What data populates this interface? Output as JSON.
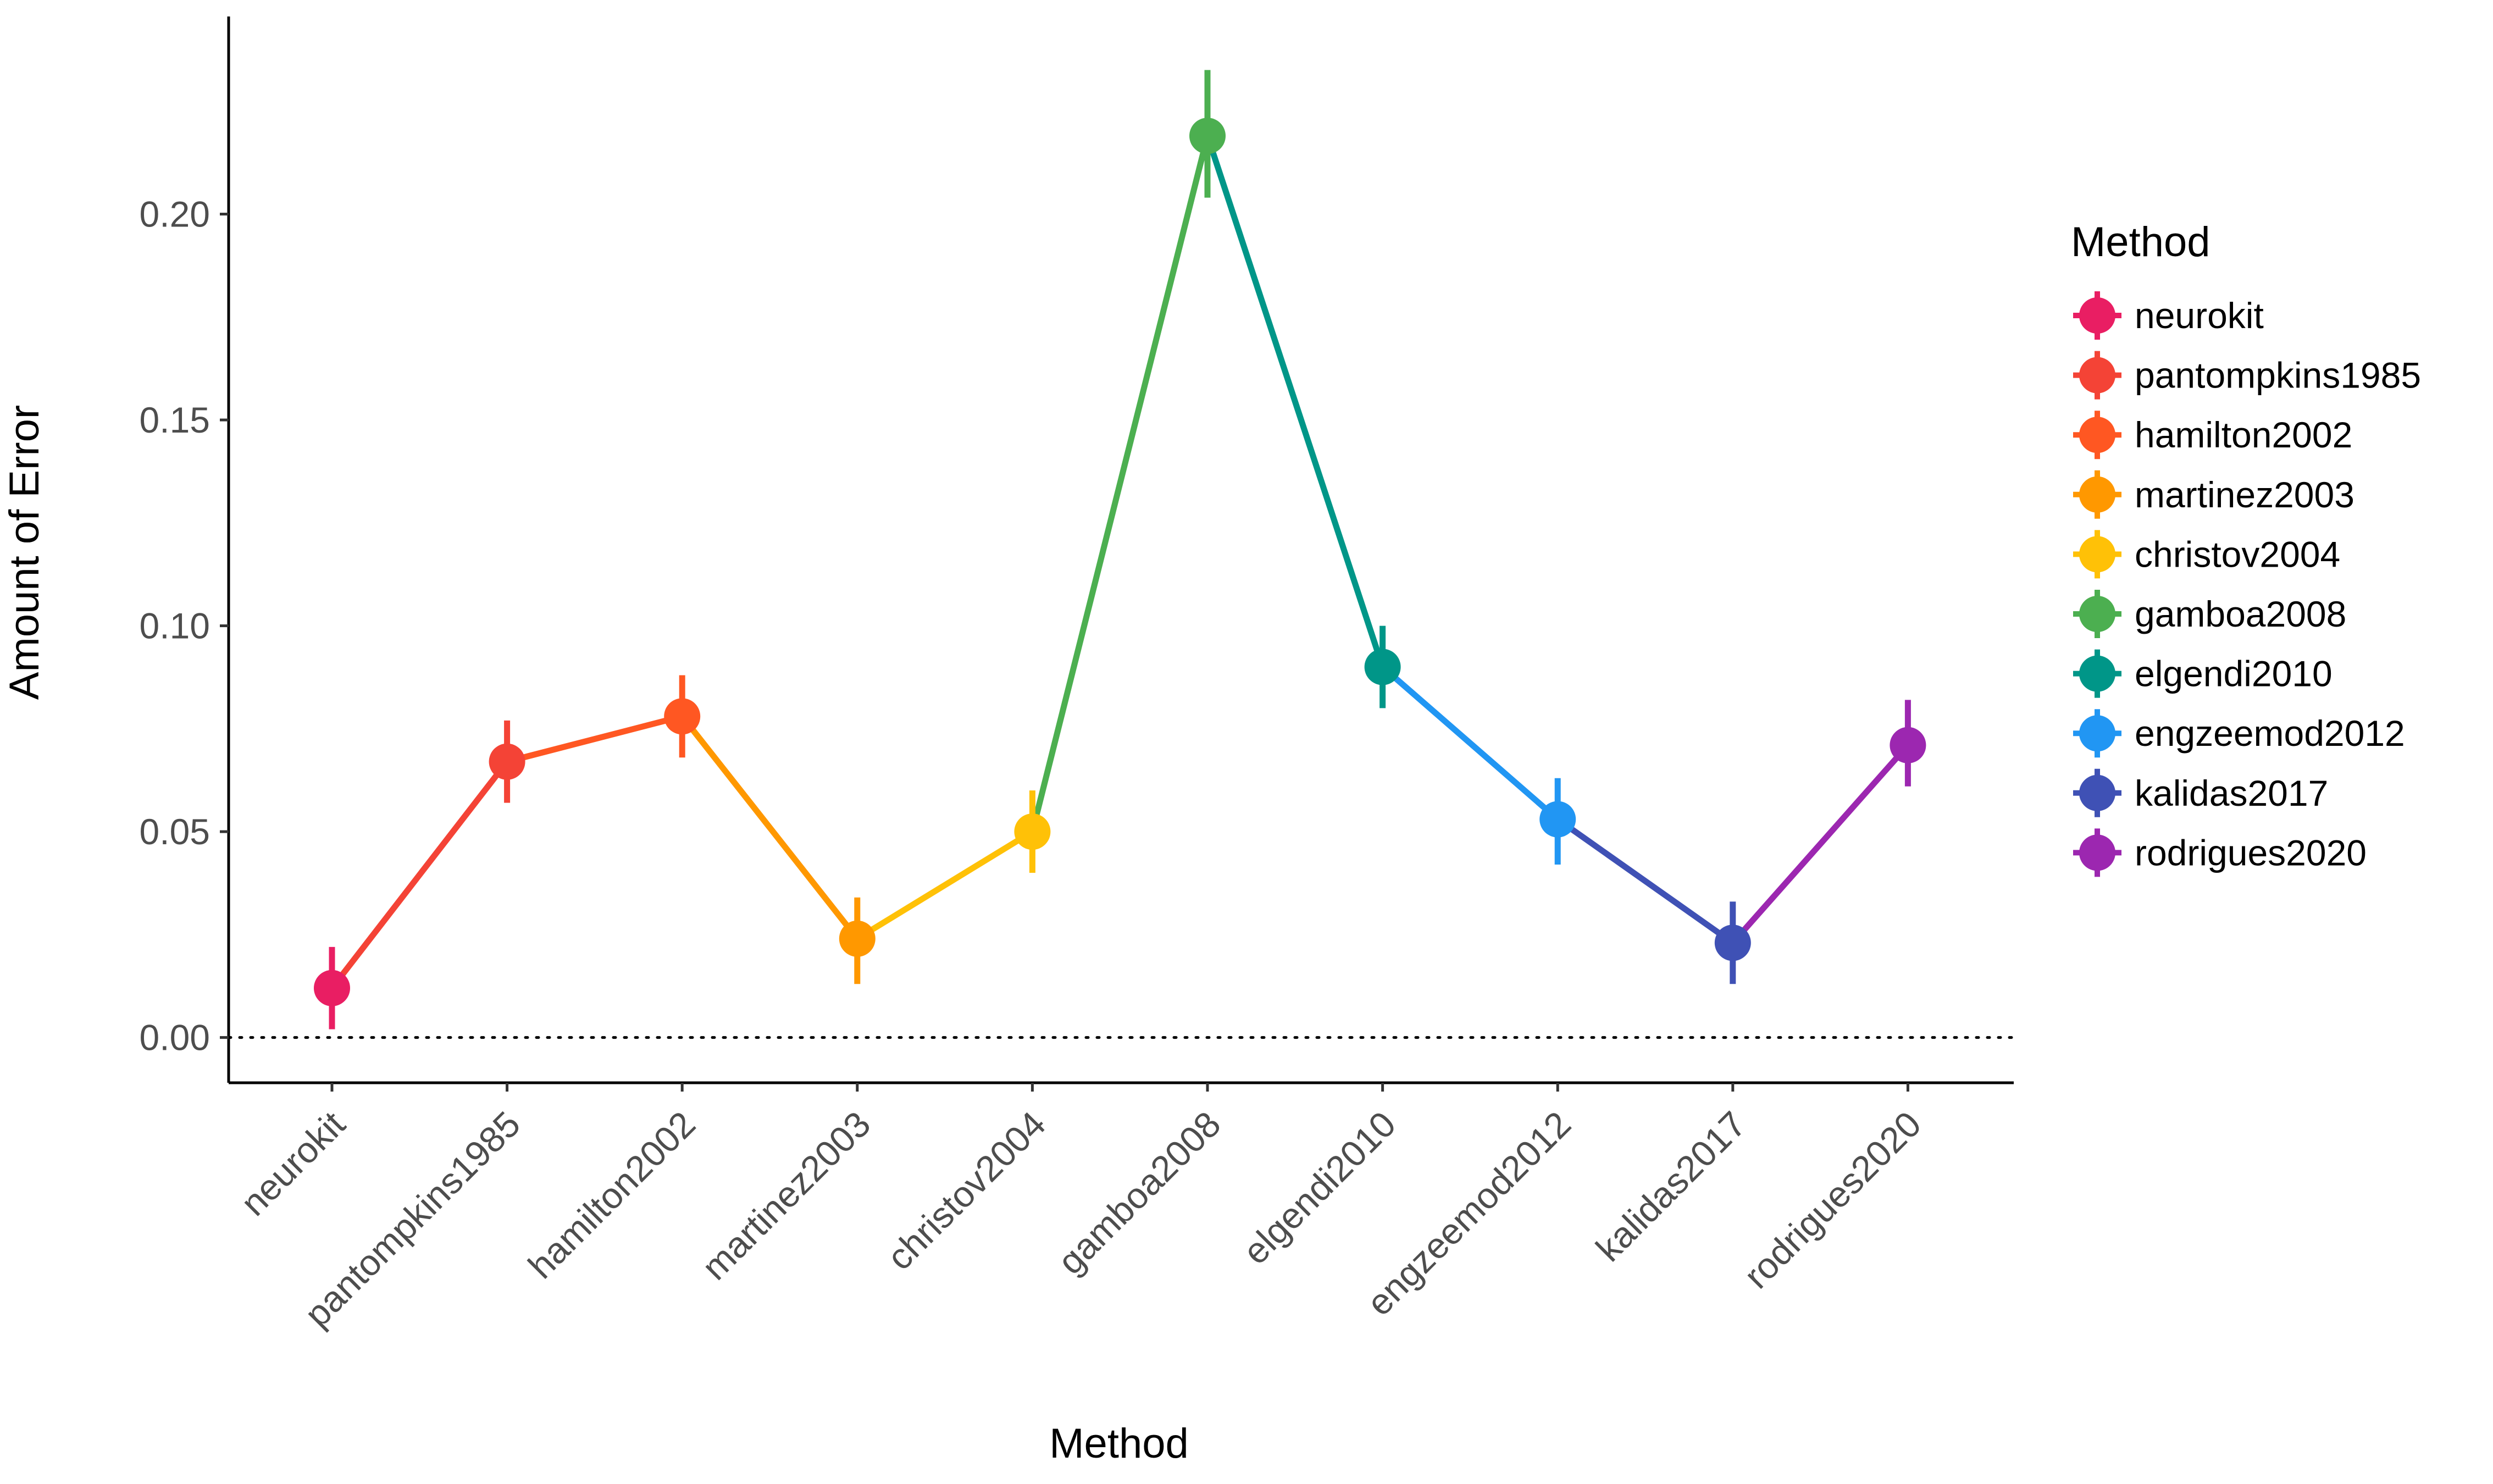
{
  "chart_data": {
    "type": "line",
    "xlabel": "Method",
    "ylabel": "Amount of Error",
    "ylim": [
      -0.011,
      0.248
    ],
    "y_ticks": [
      "0.00",
      "0.05",
      "0.10",
      "0.15",
      "0.20"
    ],
    "y_tick_values": [
      0,
      0.05,
      0.1,
      0.15,
      0.2
    ],
    "reference_line": 0,
    "grid": false,
    "legend_position": "right",
    "legend_title": "Method",
    "categories": [
      "neurokit",
      "pantompkins1985",
      "hamilton2002",
      "martinez2003",
      "christov2004",
      "gamboa2008",
      "elgendi2010",
      "engzeemod2012",
      "kalidas2017",
      "rodrigues2020"
    ],
    "values": [
      0.012,
      0.067,
      0.078,
      0.024,
      0.05,
      0.219,
      0.09,
      0.053,
      0.023,
      0.071
    ],
    "error_low": [
      0.002,
      0.057,
      0.068,
      0.013,
      0.04,
      0.204,
      0.08,
      0.042,
      0.013,
      0.061
    ],
    "error_high": [
      0.022,
      0.077,
      0.088,
      0.034,
      0.06,
      0.235,
      0.1,
      0.063,
      0.033,
      0.082
    ],
    "colors": [
      "#E91E63",
      "#F44336",
      "#FF5722",
      "#FF9800",
      "#FFC107",
      "#4CAF50",
      "#009688",
      "#2196F3",
      "#3F51B5",
      "#9C27B0"
    ]
  }
}
